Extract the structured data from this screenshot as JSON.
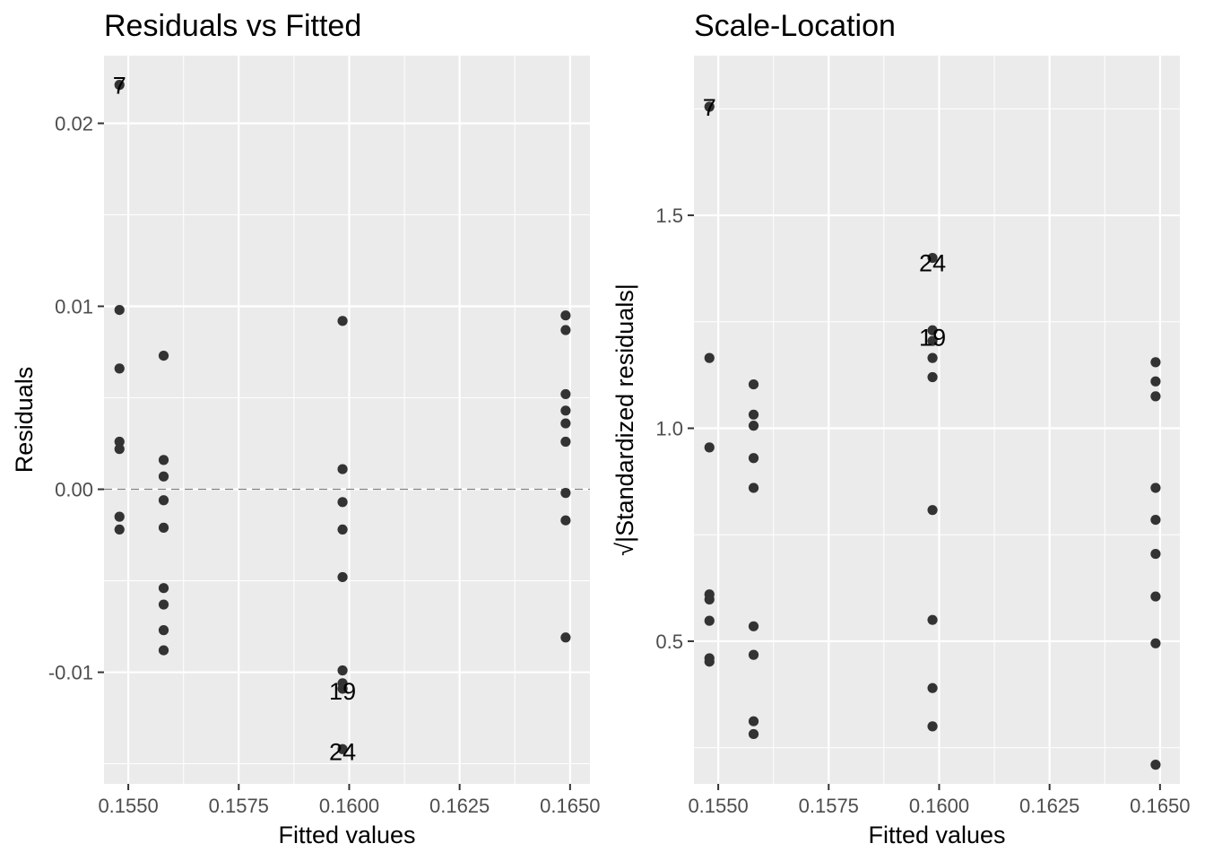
{
  "chart_data": [
    {
      "type": "scatter",
      "title": "Residuals vs Fitted",
      "xlabel": "Fitted values",
      "ylabel": "Residuals",
      "xlim": [
        0.15445,
        0.16545
      ],
      "ylim": [
        -0.0161,
        0.0237
      ],
      "xticks": [
        {
          "value": 0.155,
          "label": "0.1550"
        },
        {
          "value": 0.1575,
          "label": "0.1575"
        },
        {
          "value": 0.16,
          "label": "0.1600"
        },
        {
          "value": 0.1625,
          "label": "0.1625"
        },
        {
          "value": 0.165,
          "label": "0.1650"
        }
      ],
      "yticks": [
        {
          "value": -0.01,
          "label": "-0.01"
        },
        {
          "value": 0.0,
          "label": "0.00"
        },
        {
          "value": 0.01,
          "label": "0.01"
        },
        {
          "value": 0.02,
          "label": "0.02"
        }
      ],
      "reference_line": {
        "y": 0,
        "style": "dashed"
      },
      "points": [
        {
          "x": 0.1548,
          "y": 0.0221
        },
        {
          "x": 0.1548,
          "y": 0.0098
        },
        {
          "x": 0.1548,
          "y": 0.0066
        },
        {
          "x": 0.1548,
          "y": 0.0026
        },
        {
          "x": 0.1548,
          "y": 0.0022
        },
        {
          "x": 0.1548,
          "y": -0.0015
        },
        {
          "x": 0.1548,
          "y": -0.0022
        },
        {
          "x": 0.1558,
          "y": 0.0073
        },
        {
          "x": 0.1558,
          "y": 0.0016
        },
        {
          "x": 0.1558,
          "y": 0.0007
        },
        {
          "x": 0.1558,
          "y": -0.0006
        },
        {
          "x": 0.1558,
          "y": -0.0021
        },
        {
          "x": 0.1558,
          "y": -0.0054
        },
        {
          "x": 0.1558,
          "y": -0.0063
        },
        {
          "x": 0.1558,
          "y": -0.0077
        },
        {
          "x": 0.1558,
          "y": -0.0088
        },
        {
          "x": 0.15985,
          "y": 0.0092
        },
        {
          "x": 0.15985,
          "y": 0.0011
        },
        {
          "x": 0.15985,
          "y": -0.0007
        },
        {
          "x": 0.15985,
          "y": -0.0022
        },
        {
          "x": 0.15985,
          "y": -0.0048
        },
        {
          "x": 0.15985,
          "y": -0.0099
        },
        {
          "x": 0.15985,
          "y": -0.0106
        },
        {
          "x": 0.15985,
          "y": -0.0109
        },
        {
          "x": 0.15985,
          "y": -0.0142
        },
        {
          "x": 0.1649,
          "y": 0.0095
        },
        {
          "x": 0.1649,
          "y": 0.0087
        },
        {
          "x": 0.1649,
          "y": 0.0052
        },
        {
          "x": 0.1649,
          "y": 0.0043
        },
        {
          "x": 0.1649,
          "y": 0.0036
        },
        {
          "x": 0.1649,
          "y": 0.0026
        },
        {
          "x": 0.1649,
          "y": -0.0002
        },
        {
          "x": 0.1649,
          "y": -0.0017
        },
        {
          "x": 0.1649,
          "y": -0.0081
        }
      ],
      "labels": [
        {
          "text": "7",
          "x": 0.1548,
          "y": 0.0221
        },
        {
          "text": "19",
          "x": 0.15985,
          "y": -0.011
        },
        {
          "text": "24",
          "x": 0.15985,
          "y": -0.0143
        }
      ]
    },
    {
      "type": "scatter",
      "title": "Scale-Location",
      "xlabel": "Fitted values",
      "ylabel": "√|Standardized residuals|",
      "xlim": [
        0.15445,
        0.16545
      ],
      "ylim": [
        0.165,
        1.875
      ],
      "xticks": [
        {
          "value": 0.155,
          "label": "0.1550"
        },
        {
          "value": 0.1575,
          "label": "0.1575"
        },
        {
          "value": 0.16,
          "label": "0.1600"
        },
        {
          "value": 0.1625,
          "label": "0.1625"
        },
        {
          "value": 0.165,
          "label": "0.1650"
        }
      ],
      "yticks": [
        {
          "value": 0.5,
          "label": "0.5"
        },
        {
          "value": 1.0,
          "label": "1.0"
        },
        {
          "value": 1.5,
          "label": "1.5"
        }
      ],
      "points": [
        {
          "x": 0.1548,
          "y": 1.755
        },
        {
          "x": 0.1548,
          "y": 1.165
        },
        {
          "x": 0.1548,
          "y": 0.955
        },
        {
          "x": 0.1548,
          "y": 0.61
        },
        {
          "x": 0.1548,
          "y": 0.598
        },
        {
          "x": 0.1548,
          "y": 0.548
        },
        {
          "x": 0.1548,
          "y": 0.46
        },
        {
          "x": 0.1548,
          "y": 0.452
        },
        {
          "x": 0.1558,
          "y": 1.103
        },
        {
          "x": 0.1558,
          "y": 1.032
        },
        {
          "x": 0.1558,
          "y": 1.006
        },
        {
          "x": 0.1558,
          "y": 0.93
        },
        {
          "x": 0.1558,
          "y": 0.86
        },
        {
          "x": 0.1558,
          "y": 0.535
        },
        {
          "x": 0.1558,
          "y": 0.468
        },
        {
          "x": 0.1558,
          "y": 0.312
        },
        {
          "x": 0.1558,
          "y": 0.282
        },
        {
          "x": 0.15985,
          "y": 1.4
        },
        {
          "x": 0.15985,
          "y": 1.23
        },
        {
          "x": 0.15985,
          "y": 1.205
        },
        {
          "x": 0.15985,
          "y": 1.165
        },
        {
          "x": 0.15985,
          "y": 1.12
        },
        {
          "x": 0.15985,
          "y": 0.808
        },
        {
          "x": 0.15985,
          "y": 0.55
        },
        {
          "x": 0.15985,
          "y": 0.39
        },
        {
          "x": 0.15985,
          "y": 0.3
        },
        {
          "x": 0.1649,
          "y": 1.155
        },
        {
          "x": 0.1649,
          "y": 1.11
        },
        {
          "x": 0.1649,
          "y": 1.075
        },
        {
          "x": 0.1649,
          "y": 0.86
        },
        {
          "x": 0.1649,
          "y": 0.785
        },
        {
          "x": 0.1649,
          "y": 0.705
        },
        {
          "x": 0.1649,
          "y": 0.605
        },
        {
          "x": 0.1649,
          "y": 0.495
        },
        {
          "x": 0.1649,
          "y": 0.21
        }
      ],
      "labels": [
        {
          "text": "7",
          "x": 0.1548,
          "y": 1.755
        },
        {
          "text": "24",
          "x": 0.15985,
          "y": 1.39
        },
        {
          "text": "19",
          "x": 0.15985,
          "y": 1.215
        }
      ]
    }
  ]
}
